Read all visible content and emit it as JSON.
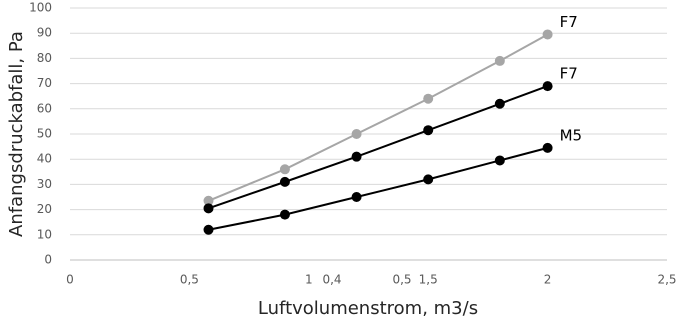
{
  "chart_data": {
    "type": "line",
    "x_label": "Luftvolumenstrom, m3/s",
    "y_label": "Anfangsdruckabfall, Pa",
    "x": [
      0.58,
      0.9,
      1.2,
      1.5,
      1.8,
      2
    ],
    "series": [
      {
        "name": "F7",
        "color": "#a6a6a6",
        "values": [
          23.5,
          36,
          50,
          64,
          79,
          89.5
        ]
      },
      {
        "name": "F7",
        "color": "#000000",
        "values": [
          20.5,
          31,
          41,
          51.5,
          62,
          69
        ]
      },
      {
        "name": "M5",
        "color": "#000000",
        "values": [
          12,
          18,
          25,
          32,
          39.5,
          44.5
        ]
      }
    ],
    "xlim": [
      0,
      2.5
    ],
    "xticks": [
      0,
      {
        "value": 0.5,
        "label": "0,5"
      },
      1,
      {
        "value": 1.5,
        "label": "1,5"
      },
      2,
      {
        "value": 2.5,
        "label": "2,5"
      }
    ],
    "ylim": [
      0,
      100
    ],
    "yticks": [
      0,
      10,
      20,
      30,
      40,
      50,
      60,
      70,
      80,
      90,
      100
    ],
    "grid": true,
    "annotations": [
      "0,4",
      "0,5"
    ]
  }
}
